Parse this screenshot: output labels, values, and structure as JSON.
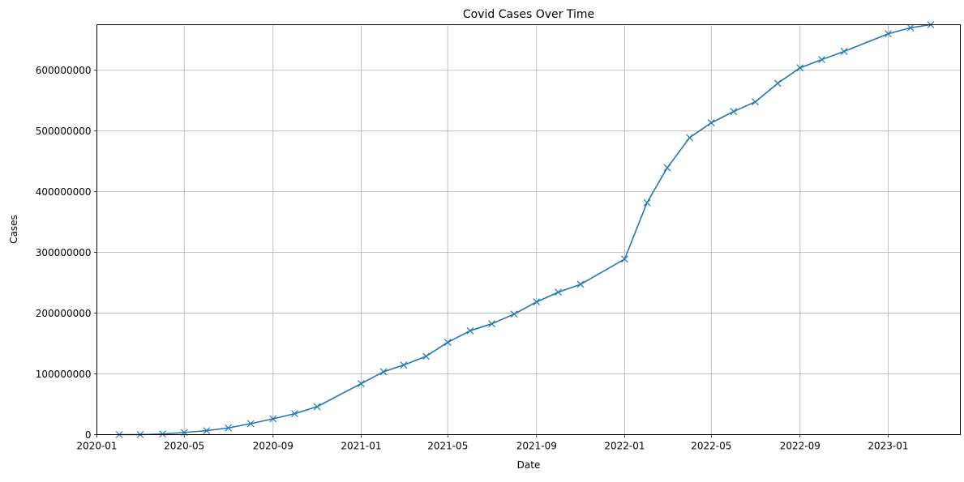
{
  "chart_data": {
    "type": "line",
    "title": "Covid Cases Over Time",
    "xlabel": "Date",
    "ylabel": "Cases",
    "xlim": [
      "2020-01-01",
      "2023-04-11"
    ],
    "ylim": [
      0,
      675000000
    ],
    "grid": true,
    "x_ticks": [
      "2020-01",
      "2020-05",
      "2020-09",
      "2021-01",
      "2021-05",
      "2021-09",
      "2022-01",
      "2022-05",
      "2022-09",
      "2023-01"
    ],
    "y_ticks": [
      0,
      100000000,
      200000000,
      300000000,
      400000000,
      500000000,
      600000000
    ],
    "series": [
      {
        "color": "#1f77b4",
        "marker": "x",
        "points": [
          {
            "x": "2020-02-01",
            "y": 0
          },
          {
            "x": "2020-03-01",
            "y": 0
          },
          {
            "x": "2020-04-01",
            "y": 1000000
          },
          {
            "x": "2020-05-01",
            "y": 3500000
          },
          {
            "x": "2020-06-01",
            "y": 6500000
          },
          {
            "x": "2020-07-01",
            "y": 11000000
          },
          {
            "x": "2020-08-01",
            "y": 18000000
          },
          {
            "x": "2020-09-01",
            "y": 26000000
          },
          {
            "x": "2020-10-01",
            "y": 34500000
          },
          {
            "x": "2020-11-01",
            "y": 46000000
          },
          {
            "x": "2021-01-01",
            "y": 84000000
          },
          {
            "x": "2021-02-01",
            "y": 103500000
          },
          {
            "x": "2021-03-01",
            "y": 114500000
          },
          {
            "x": "2021-04-01",
            "y": 129000000
          },
          {
            "x": "2021-05-01",
            "y": 152000000
          },
          {
            "x": "2021-06-01",
            "y": 171000000
          },
          {
            "x": "2021-07-01",
            "y": 182500000
          },
          {
            "x": "2021-08-01",
            "y": 198500000
          },
          {
            "x": "2021-09-01",
            "y": 218500000
          },
          {
            "x": "2021-10-01",
            "y": 234500000
          },
          {
            "x": "2021-11-01",
            "y": 247500000
          },
          {
            "x": "2022-01-01",
            "y": 289000000
          },
          {
            "x": "2022-02-01",
            "y": 382000000
          },
          {
            "x": "2022-03-01",
            "y": 439500000
          },
          {
            "x": "2022-04-01",
            "y": 489000000
          },
          {
            "x": "2022-05-01",
            "y": 513500000
          },
          {
            "x": "2022-06-01",
            "y": 532000000
          },
          {
            "x": "2022-07-01",
            "y": 548000000
          },
          {
            "x": "2022-08-01",
            "y": 578500000
          },
          {
            "x": "2022-09-01",
            "y": 604000000
          },
          {
            "x": "2022-10-01",
            "y": 617500000
          },
          {
            "x": "2022-11-01",
            "y": 631000000
          },
          {
            "x": "2023-01-01",
            "y": 660000000
          },
          {
            "x": "2023-02-01",
            "y": 670000000
          },
          {
            "x": "2023-03-01",
            "y": 675000000
          }
        ]
      }
    ]
  }
}
